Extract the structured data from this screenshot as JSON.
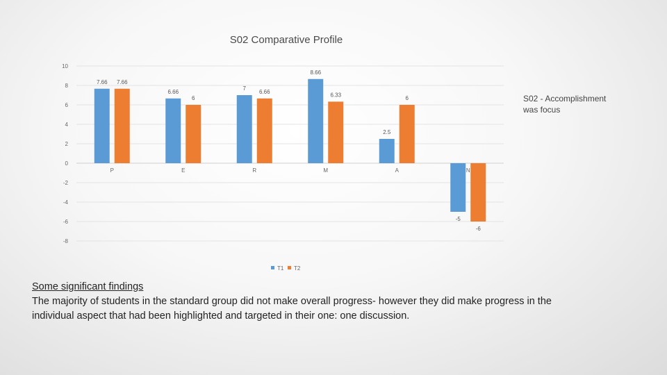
{
  "chart_data": {
    "type": "bar",
    "title": "S02 Comparative Profile",
    "categories": [
      "P",
      "E",
      "R",
      "M",
      "A",
      "N"
    ],
    "series": [
      {
        "name": "T1",
        "color": "#5b9bd5",
        "values": [
          7.66,
          6.66,
          7,
          8.66,
          2.5,
          -5
        ],
        "labels": [
          "7.66",
          "6.66",
          "7",
          "8.66",
          "2.5",
          "-5"
        ]
      },
      {
        "name": "T2",
        "color": "#ed7d31",
        "values": [
          7.66,
          6,
          6.66,
          6.33,
          6,
          -6
        ],
        "labels": [
          "7.66",
          "6",
          "6.66",
          "6.33",
          "6",
          "-6"
        ]
      }
    ],
    "y_ticks": [
      10,
      8,
      6,
      4,
      2,
      0,
      -2,
      -4,
      -6,
      -8
    ],
    "ylim": [
      -8,
      10
    ],
    "grid": true,
    "legend": "bottom",
    "xlabel": "",
    "ylabel": ""
  },
  "annotation": "S02 - Accomplishment was focus",
  "findings": {
    "heading": "Some significant findings",
    "body": "The majority of students in the standard group did not make overall progress- however they did make progress in the individual aspect that had been highlighted and targeted in their one: one discussion."
  }
}
